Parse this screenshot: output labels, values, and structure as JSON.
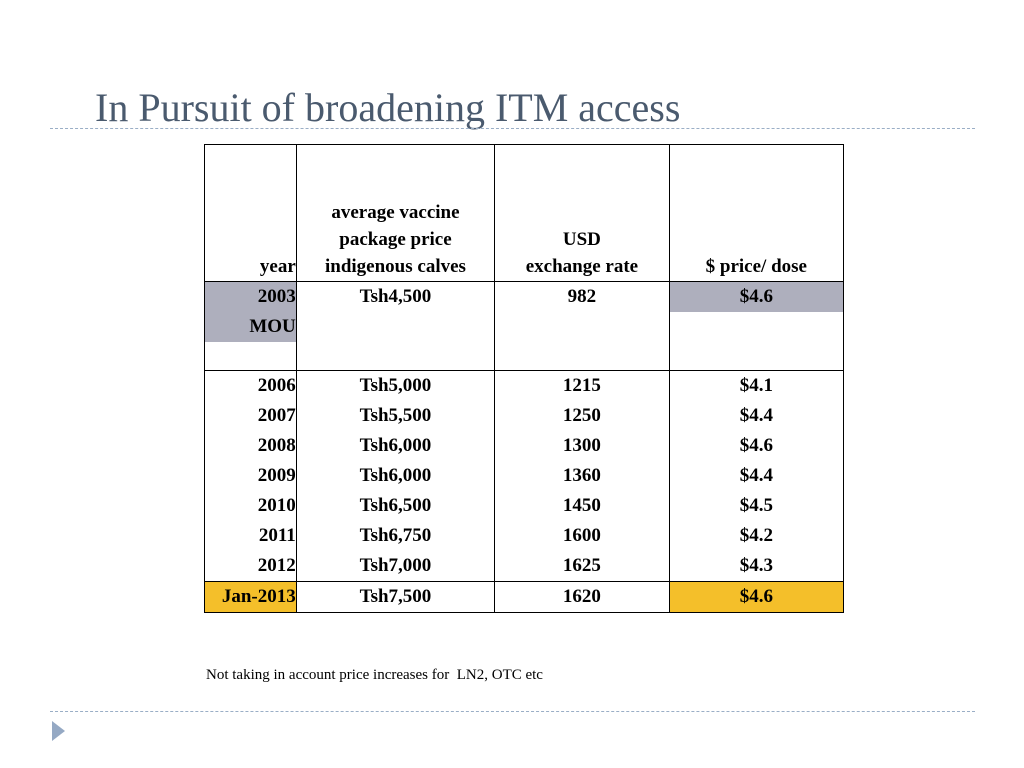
{
  "slide": {
    "title": "In Pursuit of broadening ITM access",
    "footnote": "Not taking in account price increases for  LN2, OTC etc"
  },
  "table": {
    "headers": {
      "year": "year",
      "price_line1": "average vaccine",
      "price_line2": "package price",
      "price_line3": "indigenous calves",
      "rate_line1": "USD",
      "rate_line2": "exchange rate",
      "per_dose": "$ price/ dose"
    },
    "first_row": {
      "year": "2003",
      "price": "Tsh4,500",
      "rate": "982",
      "per_dose": "$4.6",
      "note": "MOU"
    },
    "rows": [
      {
        "year": "2006",
        "price": "Tsh5,000",
        "rate": "1215",
        "per_dose": "$4.1"
      },
      {
        "year": "2007",
        "price": "Tsh5,500",
        "rate": "1250",
        "per_dose": "$4.4"
      },
      {
        "year": "2008",
        "price": "Tsh6,000",
        "rate": "1300",
        "per_dose": "$4.6"
      },
      {
        "year": "2009",
        "price": "Tsh6,000",
        "rate": "1360",
        "per_dose": "$4.4"
      },
      {
        "year": "2010",
        "price": "Tsh6,500",
        "rate": "1450",
        "per_dose": "$4.5"
      },
      {
        "year": "2011",
        "price": "Tsh6,750",
        "rate": "1600",
        "per_dose": "$4.2"
      },
      {
        "year": "2012",
        "price": "Tsh7,000",
        "rate": "1625",
        "per_dose": "$4.3"
      }
    ],
    "last_row": {
      "year": "Jan-2013",
      "price": "Tsh7,500",
      "rate": "1620",
      "per_dose": "$4.6"
    }
  },
  "colors": {
    "title": "#4a5a6e",
    "highlight_gray": "#aeafbd",
    "highlight_gold": "#f4bf2a",
    "rule": "#9aaec6"
  }
}
